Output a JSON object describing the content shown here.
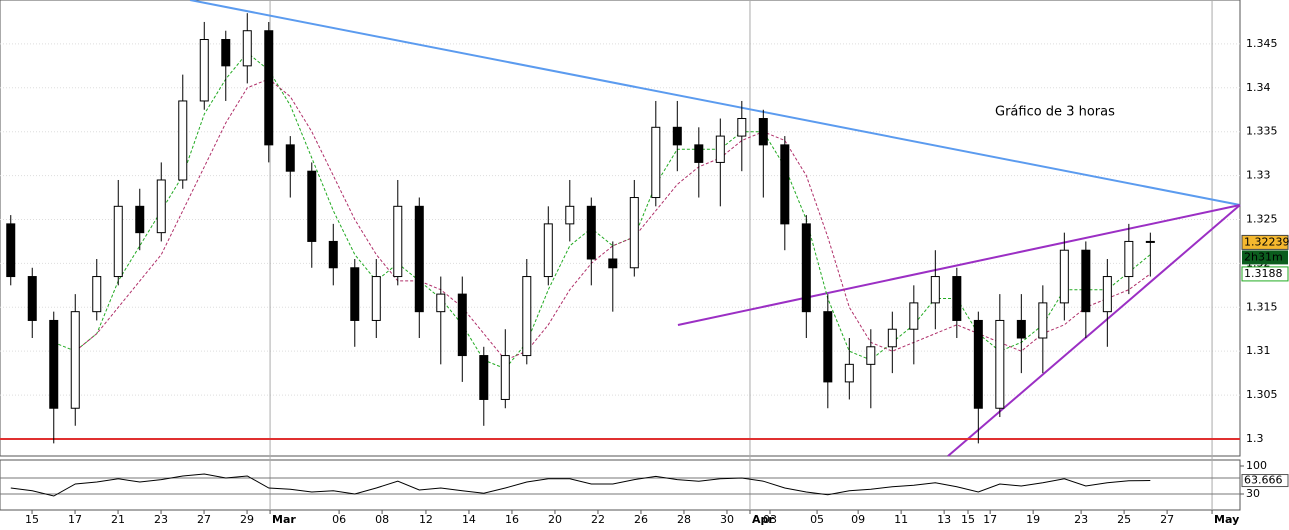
{
  "chart_data": [
    {
      "type": "candlestick",
      "annotation": "Gráfico de 3 horas",
      "countdown": "2h31m",
      "xlim": [
        0,
        57.67
      ],
      "xticks": [
        {
          "value": 1.49,
          "label": "15"
        },
        {
          "value": 3.49,
          "label": "17"
        },
        {
          "value": 5.49,
          "label": "21"
        },
        {
          "value": 7.49,
          "label": "23"
        },
        {
          "value": 9.49,
          "label": "27"
        },
        {
          "value": 11.49,
          "label": "29"
        },
        {
          "value": 12.56,
          "label": "Mar"
        },
        {
          "value": 15.77,
          "label": "06"
        },
        {
          "value": 17.77,
          "label": "08"
        },
        {
          "value": 19.81,
          "label": "12"
        },
        {
          "value": 21.81,
          "label": "14"
        },
        {
          "value": 23.81,
          "label": "16"
        },
        {
          "value": 25.81,
          "label": "20"
        },
        {
          "value": 27.81,
          "label": "22"
        },
        {
          "value": 29.81,
          "label": "26"
        },
        {
          "value": 31.81,
          "label": "28"
        },
        {
          "value": 33.81,
          "label": "30"
        },
        {
          "value": 34.88,
          "label": "Apr"
        },
        {
          "value": 35.81,
          "label": "03"
        },
        {
          "value": 38,
          "label": "05"
        },
        {
          "value": 39.91,
          "label": "09"
        },
        {
          "value": 41.91,
          "label": "11"
        },
        {
          "value": 43.91,
          "label": "13"
        },
        {
          "value": 45.02,
          "label": "15"
        },
        {
          "value": 46.05,
          "label": "17"
        },
        {
          "value": 48.05,
          "label": "19"
        },
        {
          "value": 50.28,
          "label": "23"
        },
        {
          "value": 52.28,
          "label": "25"
        },
        {
          "value": 54.28,
          "label": "27"
        },
        {
          "value": 56.37,
          "label": "May"
        }
      ],
      "ylim": [
        1.29806,
        1.35
      ],
      "yticks": [
        1.3,
        1.305,
        1.31,
        1.315,
        1.32,
        1.325,
        1.33,
        1.335,
        1.34,
        1.345
      ],
      "grid": true,
      "x": [
        0.5,
        1.5,
        2.5,
        3.5,
        4.5,
        5.5,
        6.5,
        7.5,
        8.5,
        9.5,
        10.5,
        11.5,
        12.5,
        13.5,
        14.5,
        15.5,
        16.5,
        17.5,
        18.5,
        19.5,
        20.5,
        21.5,
        22.5,
        23.5,
        24.5,
        25.5,
        26.5,
        27.5,
        28.5,
        29.5,
        30.5,
        31.5,
        32.5,
        33.5,
        34.5,
        35.5,
        36.5,
        37.5,
        38.5,
        39.5,
        40.5,
        41.5,
        42.5,
        43.5,
        44.5,
        45.5,
        46.5,
        47.5,
        48.5,
        49.5,
        50.5,
        51.5,
        52.5,
        53.5
      ],
      "open": [
        1.3245,
        1.3185,
        1.3135,
        1.3035,
        1.3145,
        1.3185,
        1.3265,
        1.3235,
        1.3295,
        1.3385,
        1.3455,
        1.3425,
        1.3465,
        1.3335,
        1.3305,
        1.3225,
        1.3195,
        1.3135,
        1.3185,
        1.3265,
        1.3145,
        1.3165,
        1.3095,
        1.3045,
        1.3095,
        1.3185,
        1.3245,
        1.3265,
        1.3205,
        1.3195,
        1.3275,
        1.3355,
        1.3335,
        1.3315,
        1.3345,
        1.3365,
        1.3335,
        1.3245,
        1.3145,
        1.3065,
        1.3085,
        1.3105,
        1.3125,
        1.3155,
        1.3185,
        1.3135,
        1.3035,
        1.3135,
        1.3115,
        1.3155,
        1.3215,
        1.3145,
        1.3185,
        1.3225
      ],
      "high": [
        1.3255,
        1.3195,
        1.3145,
        1.3165,
        1.3205,
        1.3295,
        1.3285,
        1.3315,
        1.3415,
        1.3475,
        1.3465,
        1.3485,
        1.3475,
        1.3345,
        1.3315,
        1.3245,
        1.3205,
        1.3205,
        1.3295,
        1.3275,
        1.3185,
        1.3185,
        1.3105,
        1.3125,
        1.3205,
        1.3265,
        1.3295,
        1.3275,
        1.3225,
        1.3295,
        1.3385,
        1.3385,
        1.3355,
        1.3365,
        1.3385,
        1.3375,
        1.3345,
        1.3255,
        1.3165,
        1.3115,
        1.3125,
        1.3145,
        1.3175,
        1.3215,
        1.3195,
        1.3145,
        1.3165,
        1.3165,
        1.3175,
        1.3235,
        1.3225,
        1.3205,
        1.3245,
        1.3235
      ],
      "low": [
        1.3175,
        1.3115,
        1.2995,
        1.3015,
        1.3135,
        1.3175,
        1.3215,
        1.3225,
        1.3285,
        1.3375,
        1.3385,
        1.3405,
        1.3315,
        1.3275,
        1.3195,
        1.3175,
        1.3105,
        1.3115,
        1.3175,
        1.3115,
        1.3085,
        1.3065,
        1.3015,
        1.3035,
        1.3085,
        1.3175,
        1.3225,
        1.3175,
        1.3145,
        1.3185,
        1.3265,
        1.3305,
        1.3275,
        1.3265,
        1.3305,
        1.3275,
        1.3215,
        1.3115,
        1.3035,
        1.3045,
        1.3035,
        1.3075,
        1.3085,
        1.3125,
        1.3115,
        1.2995,
        1.3025,
        1.3075,
        1.3075,
        1.3135,
        1.3115,
        1.3105,
        1.3165,
        1.3185
      ],
      "close": [
        1.3185,
        1.3135,
        1.3035,
        1.3145,
        1.3185,
        1.3265,
        1.3235,
        1.3295,
        1.3385,
        1.3455,
        1.3425,
        1.3465,
        1.3335,
        1.3305,
        1.3225,
        1.3195,
        1.3135,
        1.3185,
        1.3265,
        1.3145,
        1.3165,
        1.3095,
        1.3045,
        1.3095,
        1.3185,
        1.3245,
        1.3265,
        1.3205,
        1.3195,
        1.3275,
        1.3355,
        1.3335,
        1.3315,
        1.3345,
        1.3365,
        1.3335,
        1.3245,
        1.3145,
        1.3065,
        1.3085,
        1.3105,
        1.3125,
        1.3155,
        1.3185,
        1.3135,
        1.3035,
        1.3135,
        1.3115,
        1.3155,
        1.3215,
        1.3145,
        1.3185,
        1.3225,
        1.32239
      ],
      "up_color": "#ffffff",
      "down_color": "#000000",
      "series": [
        {
          "color": "#22aa22",
          "values": [
            null,
            null,
            1.311,
            1.31,
            1.312,
            1.318,
            1.322,
            1.326,
            1.33,
            1.337,
            1.341,
            1.344,
            1.342,
            1.338,
            1.332,
            1.326,
            1.321,
            1.318,
            1.32,
            1.318,
            1.316,
            1.313,
            1.309,
            1.308,
            1.311,
            1.317,
            1.322,
            1.324,
            1.322,
            1.323,
            1.329,
            1.333,
            1.333,
            1.333,
            1.335,
            1.335,
            1.331,
            1.325,
            1.316,
            1.31,
            1.309,
            1.311,
            1.313,
            1.316,
            1.316,
            1.312,
            1.31,
            1.311,
            1.313,
            1.317,
            1.317,
            1.317,
            1.319,
            1.321
          ]
        },
        {
          "color": "#b0306a",
          "values": [
            null,
            null,
            null,
            1.31,
            1.312,
            1.315,
            1.318,
            1.321,
            1.326,
            1.331,
            1.336,
            1.34,
            1.341,
            1.339,
            1.335,
            1.33,
            1.325,
            1.321,
            1.318,
            1.318,
            1.317,
            1.315,
            1.312,
            1.309,
            1.31,
            1.313,
            1.317,
            1.32,
            1.322,
            1.323,
            1.326,
            1.329,
            1.331,
            1.332,
            1.334,
            1.335,
            1.334,
            1.33,
            1.323,
            1.315,
            1.311,
            1.31,
            1.311,
            1.312,
            1.313,
            1.312,
            1.311,
            1.31,
            1.312,
            1.313,
            1.315,
            1.316,
            1.317,
            1.3188
          ]
        }
      ],
      "trendlines": [
        {
          "color": "#5b9bef",
          "x": [
            8.84,
            57.67
          ],
          "y": [
            1.35,
            1.32665
          ]
        },
        {
          "color": "#9b2fc4",
          "x": [
            31.53,
            57.67
          ],
          "y": [
            1.31298,
            1.32665
          ]
        },
        {
          "color": "#9b2fc4",
          "x": [
            44.09,
            57.67
          ],
          "y": [
            1.29806,
            1.32665
          ]
        },
        {
          "color": "#e03030",
          "x": [
            0,
            57.67
          ],
          "y": [
            1.3,
            1.3
          ]
        }
      ]
    },
    {
      "type": "line",
      "xlim": [
        0,
        57.67
      ],
      "ylim": [
        -10,
        115
      ],
      "yticks": [
        30,
        100
      ],
      "levels": [
        70,
        30
      ],
      "x": [
        0.5,
        1.5,
        2.5,
        3.5,
        4.5,
        5.5,
        6.5,
        7.5,
        8.5,
        9.5,
        10.5,
        11.5,
        12.5,
        13.5,
        14.5,
        15.5,
        16.5,
        17.5,
        18.5,
        19.5,
        20.5,
        21.5,
        22.5,
        23.5,
        24.5,
        25.5,
        26.5,
        27.5,
        28.5,
        29.5,
        30.5,
        31.5,
        32.5,
        33.5,
        34.5,
        35.5,
        36.5,
        37.5,
        38.5,
        39.5,
        40.5,
        41.5,
        42.5,
        43.5,
        44.5,
        45.5,
        46.5,
        47.5,
        48.5,
        49.5,
        50.5,
        51.5,
        52.5,
        53.5
      ],
      "series": [
        {
          "color": "#000000",
          "values": [
            45,
            38,
            25,
            55,
            60,
            68,
            60,
            66,
            75,
            80,
            70,
            75,
            45,
            42,
            35,
            38,
            30,
            45,
            62,
            40,
            45,
            38,
            32,
            45,
            60,
            68,
            68,
            55,
            55,
            66,
            74,
            66,
            62,
            68,
            70,
            62,
            45,
            35,
            28,
            38,
            42,
            48,
            52,
            58,
            48,
            35,
            55,
            50,
            58,
            68,
            50,
            58,
            63,
            63.666
          ]
        }
      ]
    }
  ]
}
